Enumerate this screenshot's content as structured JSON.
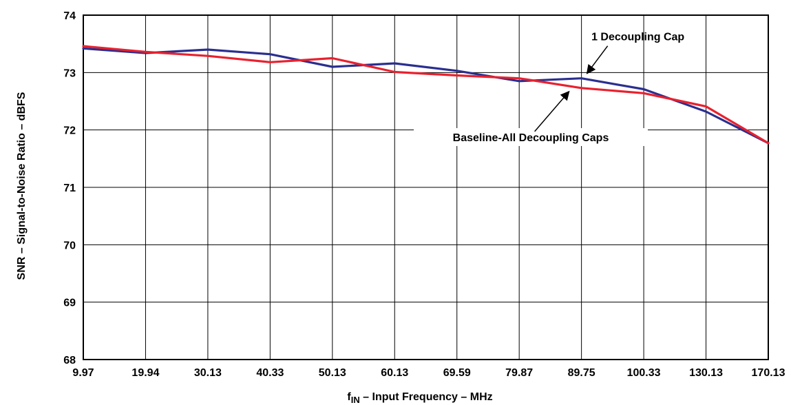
{
  "chart_data": {
    "type": "line",
    "title": "",
    "xlabel_main": "f",
    "xlabel_sub": "IN",
    "xlabel_rest": " – Input Frequency – MHz",
    "ylabel": "SNR – Signal-to-Noise Ratio – dBFS",
    "categories": [
      "9.97",
      "19.94",
      "30.13",
      "40.33",
      "50.13",
      "60.13",
      "69.59",
      "79.87",
      "89.75",
      "100.33",
      "130.13",
      "170.13"
    ],
    "y_ticks": [
      "68",
      "69",
      "70",
      "71",
      "72",
      "73",
      "74"
    ],
    "ylim": [
      68,
      74
    ],
    "grid": true,
    "series": [
      {
        "name": "1 Decoupling Cap",
        "color": "#2a2f8f",
        "values": [
          73.42,
          73.34,
          73.4,
          73.32,
          73.1,
          73.16,
          73.03,
          72.85,
          72.9,
          72.71,
          72.32,
          71.77
        ]
      },
      {
        "name": "Baseline-All Decoupling Caps",
        "color": "#e8212e",
        "values": [
          73.46,
          73.36,
          73.29,
          73.18,
          73.25,
          73.01,
          72.95,
          72.9,
          72.73,
          72.64,
          72.41,
          71.77
        ]
      }
    ],
    "annotations": [
      {
        "text": "1 Decoupling Cap",
        "series": 0,
        "target_index": 8
      },
      {
        "text": "Baseline-All Decoupling Caps",
        "series": 1,
        "target_index": 8
      }
    ]
  }
}
